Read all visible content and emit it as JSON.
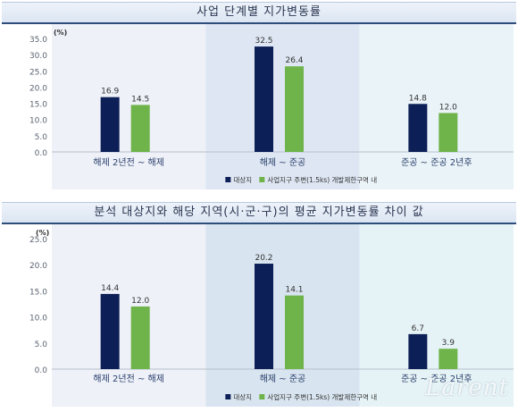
{
  "chart_data": [
    {
      "type": "bar",
      "title": "사업 단계별 지가변동률",
      "unit": "(%)",
      "categories": [
        "해제 2년전 ~ 해제",
        "해제 ~ 준공",
        "준공 ~ 준공 2년후"
      ],
      "series": [
        {
          "name": "대상지",
          "values": [
            16.9,
            32.5,
            14.8
          ],
          "color": "#0d1f57"
        },
        {
          "name": "사업지구 주변(1.5ks) 개발제한구역 내",
          "values": [
            14.5,
            26.4,
            12.0
          ],
          "color": "#6fb34b"
        }
      ],
      "yticks": [
        "35.0",
        "30.0",
        "25.0",
        "20.0",
        "15.0",
        "10.0",
        "5.0",
        "0.0"
      ],
      "ylim": [
        0,
        35
      ],
      "panel_colors": [
        "#eef1f8",
        "#dde6f2",
        "#eaf3f8"
      ]
    },
    {
      "type": "bar",
      "title": "분석 대상지와 해당 지역(시·군·구)의 평균 지가변동률 차이 값",
      "unit": "(%)",
      "categories": [
        "해제 2년전 ~ 해제",
        "해제 ~ 준공",
        "준공 ~ 준공 2년후"
      ],
      "series": [
        {
          "name": "대상지",
          "values": [
            14.4,
            20.2,
            6.7
          ],
          "color": "#0d1f57"
        },
        {
          "name": "사업지구 주변(1.5ks) 개발제한구역 내",
          "values": [
            12.0,
            14.1,
            3.9
          ],
          "color": "#6fb34b"
        }
      ],
      "yticks": [
        "25.0",
        "20.0",
        "15.0",
        "10.0",
        "5.0",
        "0.0"
      ],
      "ylim": [
        0,
        25
      ],
      "panel_colors": [
        "#eef1f8",
        "#d8e4ef",
        "#e6f3f6"
      ]
    }
  ],
  "watermark": "Larent"
}
